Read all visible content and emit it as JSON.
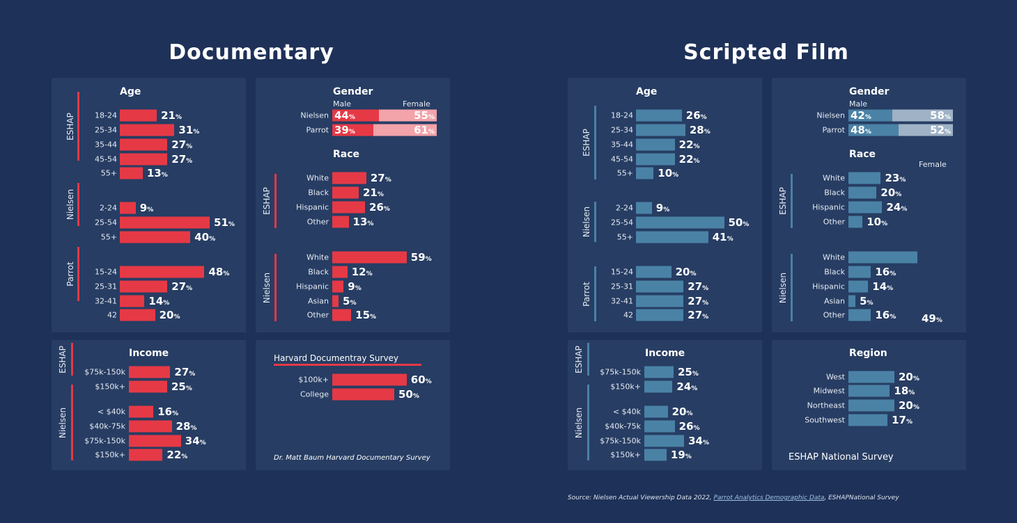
{
  "colors": {
    "background": "#1e3158",
    "panel": "#273d63",
    "documentary": "#e63946",
    "documentary_light": "#f3a3aa",
    "scripted": "#4a82a6",
    "scripted_light": "#9fb2c6"
  },
  "chart_data": [
    {
      "type": "bar",
      "title": "Documentary",
      "unit": "%",
      "age": {
        "title": "Age",
        "groups": [
          {
            "name": "ESHAP",
            "categories": [
              "18-24",
              "25-34",
              "35-44",
              "45-54",
              "55+"
            ],
            "values": [
              21,
              31,
              27,
              27,
              13
            ]
          },
          {
            "name": "Nielsen",
            "categories": [
              "2-24",
              "25-54",
              "55+"
            ],
            "values": [
              9,
              51,
              40
            ]
          },
          {
            "name": "Parrot",
            "categories": [
              "15-24",
              "25-31",
              "32-41",
              "42"
            ],
            "values": [
              48,
              27,
              14,
              20
            ]
          }
        ]
      },
      "gender": {
        "title": "Gender",
        "male_label": "Male",
        "female_label": "Female",
        "rows": [
          {
            "name": "Nielsen",
            "male": 44,
            "female": 55
          },
          {
            "name": "Parrot",
            "male": 39,
            "female": 61
          }
        ]
      },
      "race": {
        "title": "Race",
        "groups": [
          {
            "name": "ESHAP",
            "categories": [
              "White",
              "Black",
              "Hispanic",
              "Other"
            ],
            "values": [
              27,
              21,
              26,
              13
            ]
          },
          {
            "name": "Nielsen",
            "categories": [
              "White",
              "Black",
              "Hispanic",
              "Asian",
              "Other"
            ],
            "values": [
              59,
              12,
              9,
              5,
              15
            ]
          }
        ]
      },
      "income": {
        "title": "Income",
        "groups": [
          {
            "name": "ESHAP",
            "categories": [
              "$75k-150k",
              "$150k+"
            ],
            "values": [
              27,
              25
            ]
          },
          {
            "name": "Nielsen",
            "categories": [
              "< $40k",
              "$40k-75k",
              "$75k-150k",
              "$150k+"
            ],
            "values": [
              16,
              28,
              34,
              22
            ]
          }
        ]
      },
      "harvard": {
        "title": "Harvard Documentray Survey",
        "categories": [
          "$100k+",
          "College"
        ],
        "values": [
          60,
          50
        ],
        "note": "Dr. Matt Baum Harvard Documentary Survey"
      }
    },
    {
      "type": "bar",
      "title": "Scripted Film",
      "unit": "%",
      "age": {
        "title": "Age",
        "groups": [
          {
            "name": "ESHAP",
            "categories": [
              "18-24",
              "25-34",
              "35-44",
              "45-54",
              "55+"
            ],
            "values": [
              26,
              28,
              22,
              22,
              10
            ]
          },
          {
            "name": "Nielsen",
            "categories": [
              "2-24",
              "25-54",
              "55+"
            ],
            "values": [
              9,
              50,
              41
            ]
          },
          {
            "name": "Parrot",
            "categories": [
              "15-24",
              "25-31",
              "32-41",
              "42"
            ],
            "values": [
              20,
              27,
              27,
              27
            ]
          }
        ]
      },
      "gender": {
        "title": "Gender",
        "male_label": "Male",
        "female_label": "Female",
        "rows": [
          {
            "name": "Nielsen",
            "male": 42,
            "female": 58
          },
          {
            "name": "Parrot",
            "male": 48,
            "female": 52
          }
        ]
      },
      "race": {
        "title": "Race",
        "groups": [
          {
            "name": "ESHAP",
            "categories": [
              "White",
              "Black",
              "Hispanic",
              "Other"
            ],
            "values": [
              23,
              20,
              24,
              10
            ]
          },
          {
            "name": "Nielsen",
            "categories": [
              "White",
              "Black",
              "Hispanic",
              "Asian",
              "Other"
            ],
            "values": [
              49,
              16,
              14,
              5,
              16
            ]
          }
        ]
      },
      "income": {
        "title": "Income",
        "groups": [
          {
            "name": "ESHAP",
            "categories": [
              "$75k-150k",
              "$150k+"
            ],
            "values": [
              25,
              24
            ]
          },
          {
            "name": "Nielsen",
            "categories": [
              "< $40k",
              "$40k-75k",
              "$75k-150k",
              "$150k+"
            ],
            "values": [
              20,
              26,
              34,
              19
            ]
          }
        ]
      },
      "region": {
        "title": "Region",
        "categories": [
          "West",
          "Midwest",
          "Northeast",
          "Southwest"
        ],
        "values": [
          20,
          18,
          20,
          17
        ],
        "note": "ESHAP National Survey"
      }
    }
  ],
  "source": {
    "prefix": "Source: ",
    "part1": "Nielsen Actual Viewership Data 2022, ",
    "link": "Parrot Analytics Demographic Data",
    "part2": ", ESHAPNational Survey"
  }
}
